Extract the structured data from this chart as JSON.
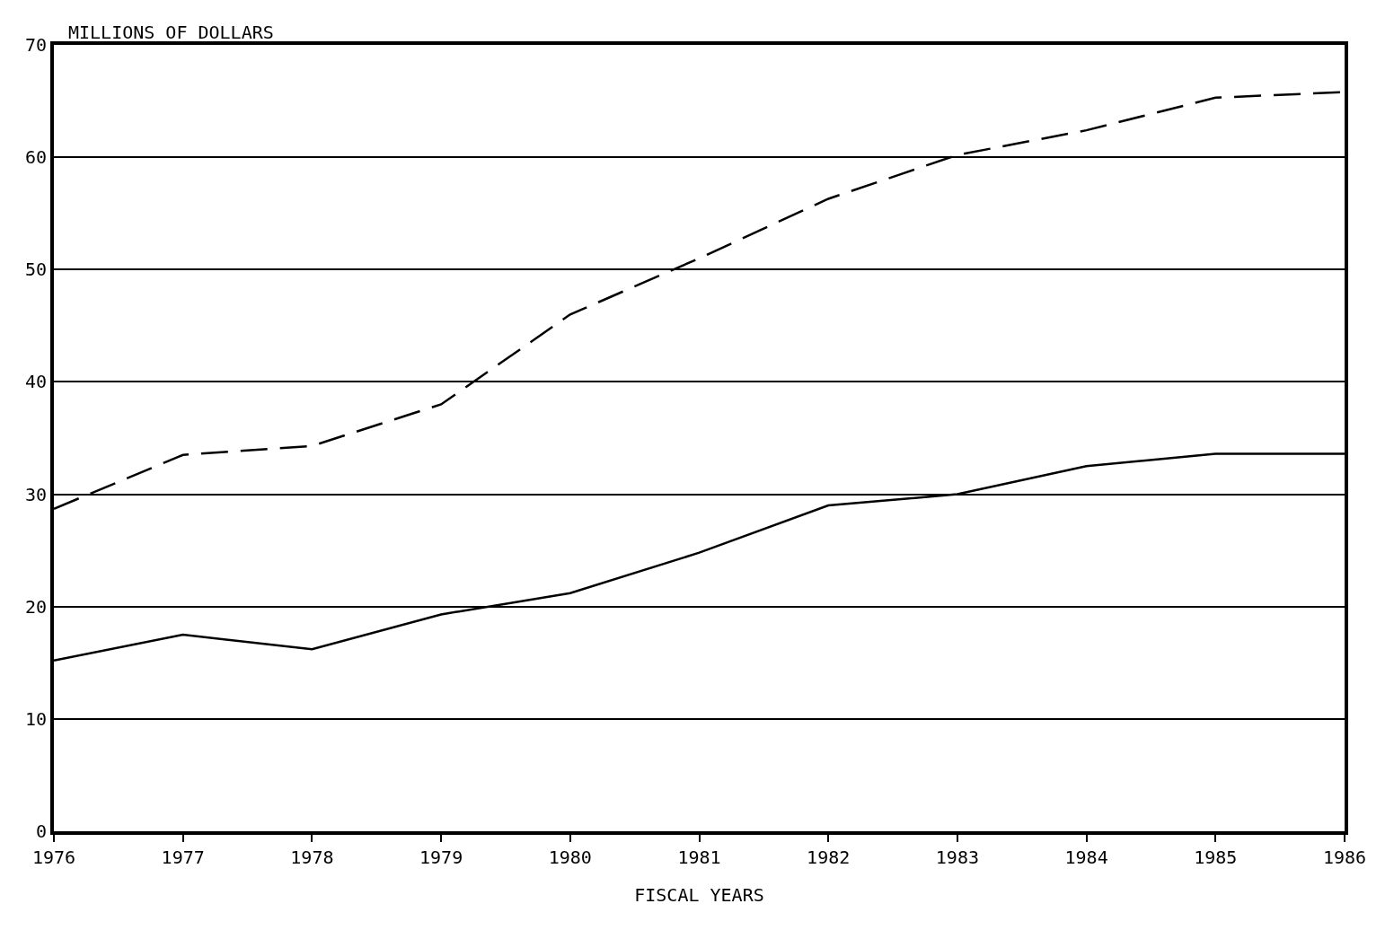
{
  "chart_data": {
    "type": "line",
    "ylabel": "MILLIONS OF DOLLARS",
    "xlabel": "FISCAL YEARS",
    "x": [
      1976,
      1977,
      1978,
      1979,
      1980,
      1981,
      1982,
      1983,
      1984,
      1985,
      1986
    ],
    "series": [
      {
        "color": "#000000",
        "line_style": "dashed",
        "values": [
          28.7,
          33.5,
          34.3,
          38,
          46,
          51,
          56.3,
          60.2,
          62.4,
          65.3,
          65.8
        ]
      },
      {
        "color": "#000000",
        "line_style": "solid",
        "values": [
          15.2,
          17.5,
          16.2,
          19.3,
          21.2,
          24.8,
          29,
          30,
          32.5,
          33.6,
          33.6
        ]
      }
    ],
    "xlim": [
      1976,
      1986
    ],
    "xticks": [
      1976,
      1977,
      1978,
      1979,
      1980,
      1981,
      1982,
      1983,
      1984,
      1985,
      1986
    ],
    "ylim": [
      0,
      70
    ],
    "yticks": [
      0,
      10,
      20,
      30,
      40,
      50,
      60,
      70
    ],
    "grid": "y",
    "marker": "none"
  }
}
